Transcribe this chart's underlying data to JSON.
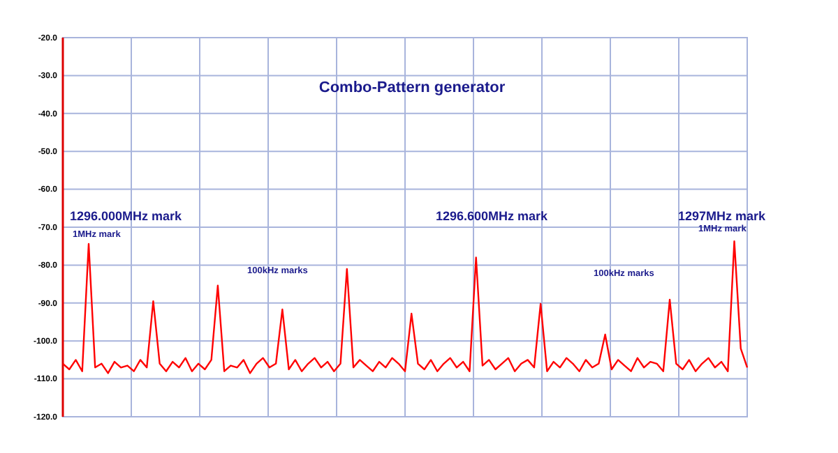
{
  "chart_data": {
    "type": "line",
    "title": "Combo-Pattern generator",
    "categories": [
      null,
      null,
      null,
      null,
      null,
      null,
      null,
      null,
      null,
      null,
      null,
      null,
      null,
      null,
      null,
      null,
      null,
      null,
      null,
      null,
      null,
      null,
      null,
      null,
      null,
      null,
      null,
      null,
      null,
      null,
      null,
      null,
      null,
      null,
      null,
      null,
      null,
      null,
      null,
      null,
      null,
      null,
      null,
      null,
      null,
      null,
      null,
      null,
      null,
      null,
      null,
      null,
      null,
      null,
      null,
      null,
      null,
      null,
      null,
      null,
      null,
      null,
      null,
      null,
      null,
      null,
      null,
      null,
      null,
      null,
      null,
      null,
      null,
      null,
      null,
      null,
      null,
      null,
      null,
      null,
      null,
      null,
      null,
      null,
      null,
      null,
      null,
      null,
      null,
      null,
      null,
      null,
      null,
      null,
      null,
      null,
      null,
      null,
      null,
      null,
      null,
      null,
      null,
      null,
      null,
      null,
      null
    ],
    "series": [
      {
        "color": "#ff0000",
        "values": [
          -106,
          -107.5,
          -105,
          -108,
          -74.4,
          -107,
          -106,
          -108.5,
          -105.5,
          -107,
          -106.5,
          -108,
          -105,
          -107,
          -89.5,
          -106,
          -108,
          -105.5,
          -107,
          -104.5,
          -108,
          -106,
          -107.5,
          -105,
          -85.4,
          -108,
          -106.5,
          -107,
          -105,
          -108.5,
          -106,
          -104.5,
          -107,
          -106,
          -91.7,
          -107.5,
          -105,
          -108,
          -106,
          -104.5,
          -107,
          -105.5,
          -108,
          -106,
          -81,
          -107,
          -105,
          -106.5,
          -108,
          -105.5,
          -107,
          -104.5,
          -106,
          -108,
          -92.8,
          -106,
          -107.5,
          -105,
          -108,
          -106,
          -104.5,
          -107,
          -105.5,
          -108,
          -78,
          -106.5,
          -105,
          -107.5,
          -106,
          -104.5,
          -108,
          -106,
          -105,
          -107,
          -90.2,
          -108,
          -105.5,
          -107,
          -104.5,
          -106,
          -108,
          -105,
          -107,
          -106,
          -98.3,
          -107.5,
          -105,
          -106.5,
          -108,
          -104.5,
          -107,
          -105.5,
          -106,
          -108,
          -89.1,
          -106,
          -107.5,
          -105,
          -108,
          -106,
          -104.5,
          -107,
          -105.5,
          -108,
          -73.7,
          -102,
          -107
        ]
      }
    ],
    "ylim": [
      -120,
      -20
    ],
    "yticks": [
      {
        "value": -20,
        "label": "-20.0"
      },
      {
        "value": -30,
        "label": "-30.0"
      },
      {
        "value": -40,
        "label": "-40.0"
      },
      {
        "value": -50,
        "label": "-50.0"
      },
      {
        "value": -60,
        "label": "-60.0"
      },
      {
        "value": -70,
        "label": "-70.0"
      },
      {
        "value": -80,
        "label": "-80.0"
      },
      {
        "value": -90,
        "label": "-90.0"
      },
      {
        "value": -100,
        "label": "-100.0"
      },
      {
        "value": -110,
        "label": "-110.0"
      },
      {
        "value": -120,
        "label": "-120.0"
      }
    ],
    "grid": true,
    "tick_labels": "y",
    "marker": "none",
    "line_style": "solid",
    "annotations": [
      "1296.000MHz mark",
      "1MHz mark",
      "100kHz marks",
      "1296.600MHz mark",
      "100kHz marks",
      "1297MHz mark",
      "1MHz mark"
    ]
  }
}
